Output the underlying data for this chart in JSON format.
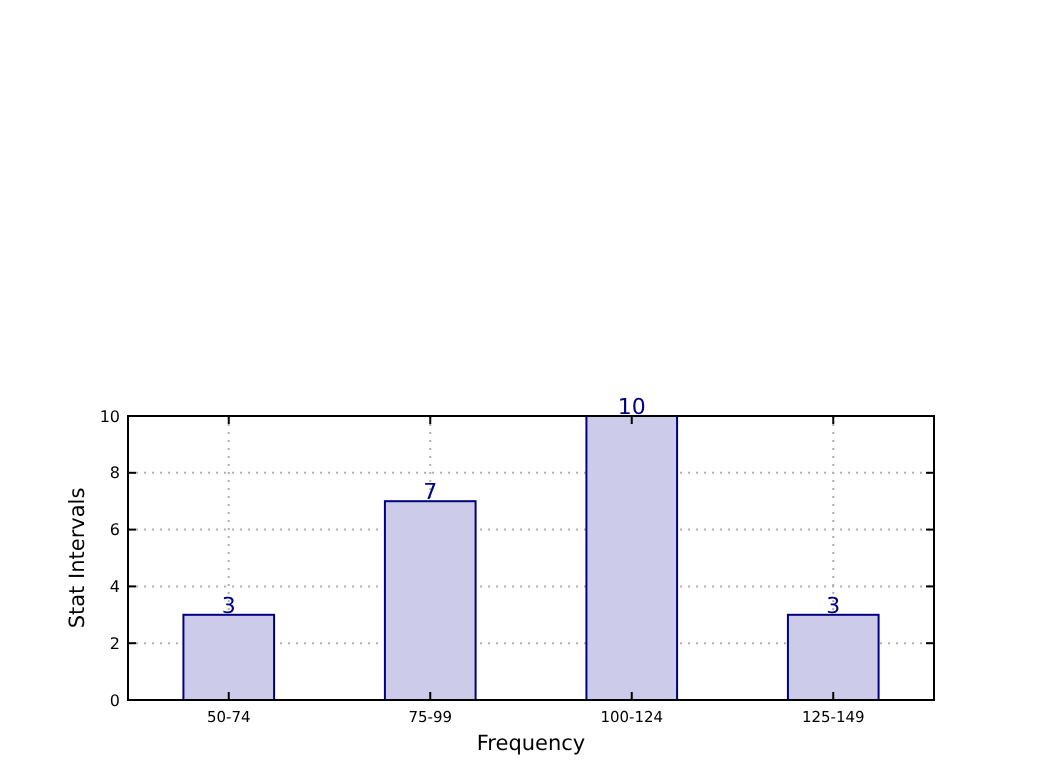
{
  "chart_data": {
    "type": "bar",
    "xlabel": "Frequency",
    "ylabel": "Stat Intervals",
    "categories": [
      "50-74",
      "75-99",
      "100-124",
      "125-149"
    ],
    "values": [
      3,
      7,
      10,
      3
    ],
    "color": "#ccccea",
    "ylim": [
      0,
      10
    ],
    "yticks": [
      0,
      2,
      4,
      6,
      8,
      10
    ],
    "grid": true,
    "data_labels": true
  }
}
